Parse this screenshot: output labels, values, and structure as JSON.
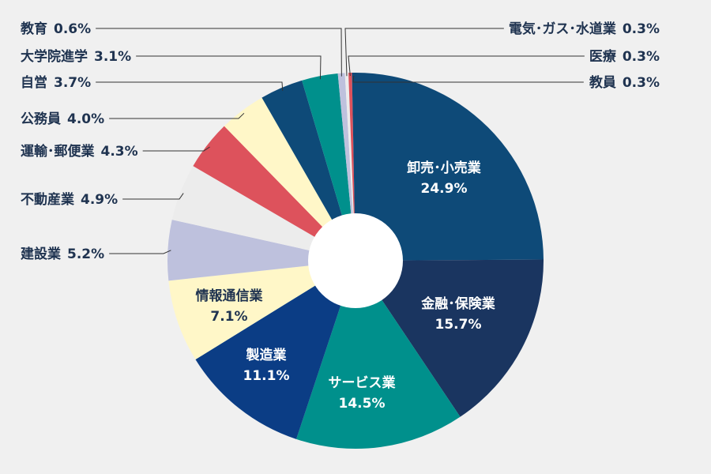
{
  "chart_data": {
    "type": "pie",
    "donut": true,
    "start_angle_deg": 0,
    "direction": "clockwise",
    "slices": [
      {
        "name": "卸売･小売業",
        "value": 24.9,
        "label": "24.9%",
        "color": "#0e4a78",
        "label_placement": "inside"
      },
      {
        "name": "金融･保険業",
        "value": 15.7,
        "label": "15.7%",
        "color": "#1a3560",
        "label_placement": "inside"
      },
      {
        "name": "サービス業",
        "value": 14.5,
        "label": "14.5%",
        "color": "#00908c",
        "label_placement": "inside"
      },
      {
        "name": "製造業",
        "value": 11.1,
        "label": "11.1%",
        "color": "#0b3d85",
        "label_placement": "inside"
      },
      {
        "name": "情報通信業",
        "value": 7.1,
        "label": "7.1%",
        "color": "#fff7c8",
        "label_placement": "inside"
      },
      {
        "name": "建設業",
        "value": 5.2,
        "label": "5.2%",
        "color": "#bec1dd",
        "label_placement": "outside"
      },
      {
        "name": "不動産業",
        "value": 4.9,
        "label": "4.9%",
        "color": "#ececec",
        "label_placement": "outside"
      },
      {
        "name": "運輸･郵便業",
        "value": 4.3,
        "label": "4.3%",
        "color": "#dd525c",
        "label_placement": "outside"
      },
      {
        "name": "公務員",
        "value": 4.0,
        "label": "4.0%",
        "color": "#fff7c8",
        "label_placement": "outside"
      },
      {
        "name": "自営",
        "value": 3.7,
        "label": "3.7%",
        "color": "#0e4a78",
        "label_placement": "outside"
      },
      {
        "name": "大学院進学",
        "value": 3.1,
        "label": "3.1%",
        "color": "#00908c",
        "label_placement": "outside"
      },
      {
        "name": "教育",
        "value": 0.6,
        "label": "0.6%",
        "color": "#bec1dd",
        "label_placement": "outside"
      },
      {
        "name": "電気･ガス･水道業",
        "value": 0.3,
        "label": "0.3%",
        "color": "#ececec",
        "label_placement": "outside"
      },
      {
        "name": "医療",
        "value": 0.3,
        "label": "0.3%",
        "color": "#dd525c",
        "label_placement": "outside"
      },
      {
        "name": "教員",
        "value": 0.3,
        "label": "0.3%",
        "color": "#0e4a78",
        "label_placement": "outside"
      }
    ]
  }
}
